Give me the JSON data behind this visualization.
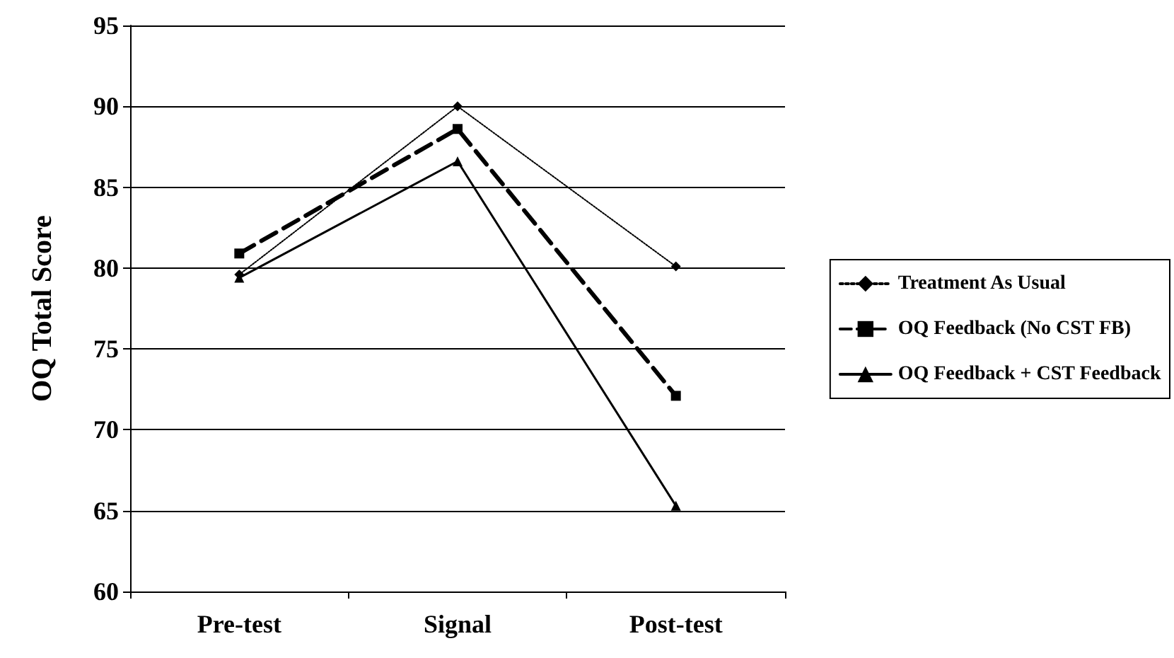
{
  "chart_data": {
    "type": "line",
    "ylabel": "OQ Total Score",
    "categories": [
      "Pre-test",
      "Signal",
      "Post-test"
    ],
    "series": [
      {
        "name": "Treatment As Usual",
        "color": "#000000",
        "values": [
          79.6,
          90,
          80.1
        ],
        "marker": "diamond",
        "line_style": "dotted"
      },
      {
        "name": "OQ Feedback (No CST FB)",
        "color": "#000000",
        "values": [
          80.9,
          88.6,
          72.1
        ],
        "marker": "square",
        "line_style": "dashed"
      },
      {
        "name": "OQ Feedback + CST Feedback",
        "color": "#000000",
        "values": [
          79.4,
          86.6,
          65.3
        ],
        "marker": "triangle",
        "line_style": "solid"
      }
    ],
    "ylim": [
      60,
      95
    ],
    "yticks": [
      60,
      65,
      70,
      75,
      80,
      85,
      90,
      95
    ],
    "grid": "y",
    "legend": "right"
  }
}
